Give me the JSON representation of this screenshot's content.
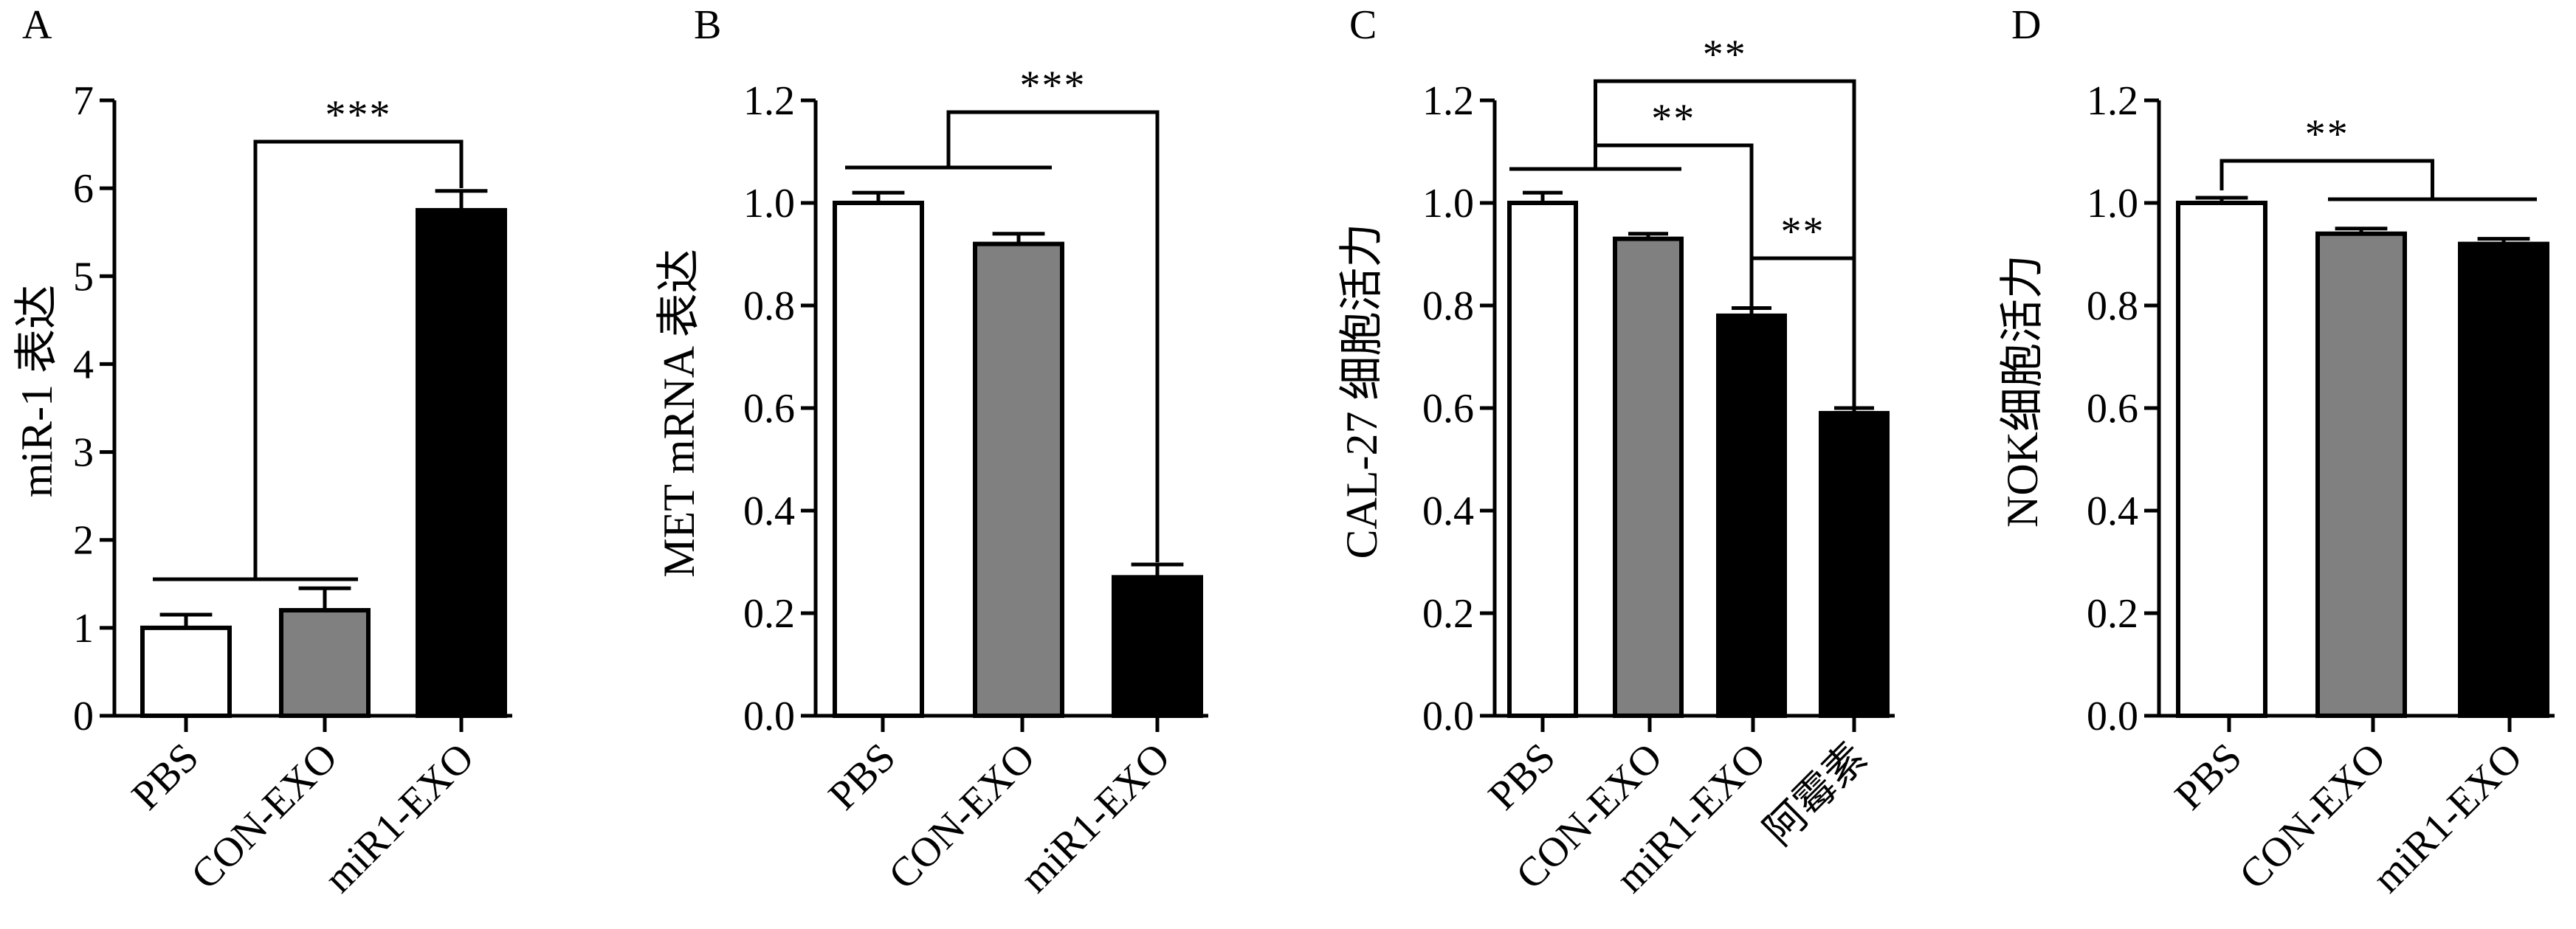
{
  "colors": {
    "PBS": "#ffffff",
    "CON-EXO": "#808080",
    "miR1-EXO": "#000000",
    "阿霉素": "#000000",
    "stroke": "#000000"
  },
  "chart_data": [
    {
      "panel": "A",
      "type": "bar",
      "ylabel": "miR-1 表达",
      "ylim": [
        0,
        7
      ],
      "yticks": [
        "0",
        "1",
        "2",
        "3",
        "4",
        "5",
        "6",
        "7"
      ],
      "categories": [
        "PBS",
        "CON-EXO",
        "miR1-EXO"
      ],
      "values": [
        1.0,
        1.2,
        5.75
      ],
      "errors": [
        0.15,
        0.25,
        0.22
      ],
      "significance": [
        {
          "label": "***",
          "from": [
            0,
            1
          ],
          "to": [
            2
          ]
        }
      ]
    },
    {
      "panel": "B",
      "type": "bar",
      "ylabel": "MET mRNA 表达",
      "ylim": [
        0,
        1.2
      ],
      "yticks": [
        "0.0",
        "0.2",
        "0.4",
        "0.6",
        "0.8",
        "1.0",
        "1.2"
      ],
      "categories": [
        "PBS",
        "CON-EXO",
        "miR1-EXO"
      ],
      "values": [
        1.0,
        0.92,
        0.27
      ],
      "errors": [
        0.02,
        0.02,
        0.025
      ],
      "significance": [
        {
          "label": "***",
          "from": [
            0,
            1
          ],
          "to": [
            2
          ]
        }
      ]
    },
    {
      "panel": "C",
      "type": "bar",
      "ylabel": "CAL-27 细胞活力",
      "ylim": [
        0,
        1.2
      ],
      "yticks": [
        "0.0",
        "0.2",
        "0.4",
        "0.6",
        "0.8",
        "1.0",
        "1.2"
      ],
      "categories": [
        "PBS",
        "CON-EXO",
        "miR1-EXO",
        "阿霉素"
      ],
      "values": [
        1.0,
        0.93,
        0.78,
        0.59
      ],
      "errors": [
        0.02,
        0.01,
        0.015,
        0.01
      ],
      "significance": [
        {
          "label": "**",
          "from": [
            0,
            1
          ],
          "to": [
            3
          ]
        },
        {
          "label": "**",
          "from": [
            0,
            1
          ],
          "to": [
            2
          ]
        },
        {
          "label": "**",
          "from": [
            2
          ],
          "to": [
            3
          ]
        }
      ]
    },
    {
      "panel": "D",
      "type": "bar",
      "ylabel": "NOK细胞活力",
      "ylim": [
        0,
        1.2
      ],
      "yticks": [
        "0.0",
        "0.2",
        "0.4",
        "0.6",
        "0.8",
        "1.0",
        "1.2"
      ],
      "categories": [
        "PBS",
        "CON-EXO",
        "miR1-EXO"
      ],
      "values": [
        1.0,
        0.94,
        0.92
      ],
      "errors": [
        0.01,
        0.01,
        0.01
      ],
      "significance": [
        {
          "label": "**",
          "from": [
            0
          ],
          "to": [
            1,
            2
          ]
        }
      ]
    }
  ]
}
